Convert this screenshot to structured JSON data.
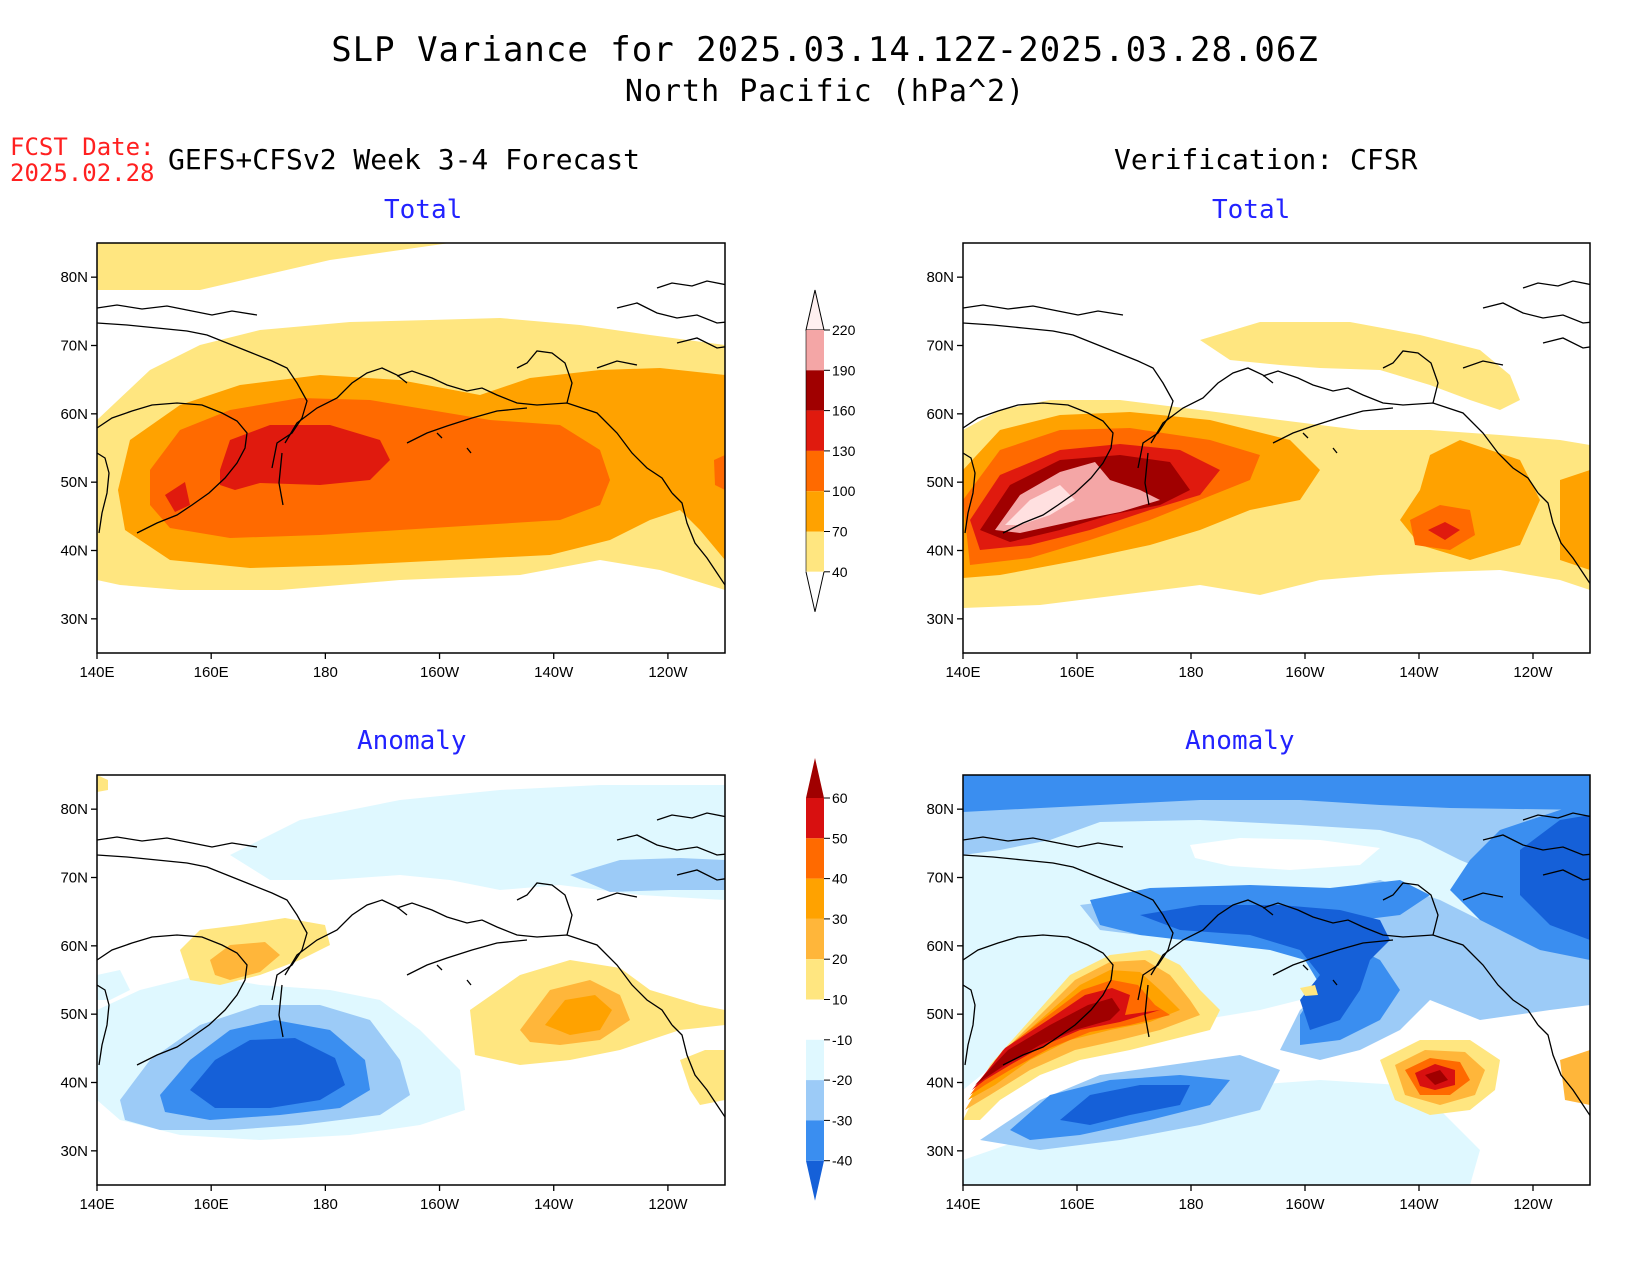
{
  "title": {
    "line1": "SLP Variance for 2025.03.14.12Z-2025.03.28.06Z",
    "line2": "North Pacific (hPa^2)"
  },
  "fcst": {
    "label": "FCST Date:",
    "date": "2025.02.28"
  },
  "left_header": "GEFS+CFSv2 Week 3-4 Forecast",
  "right_header": "Verification: CFSR",
  "panels": {
    "tl": "Total",
    "tr": "Total",
    "bl": "Anomaly",
    "br": "Anomaly"
  },
  "axes": {
    "lat_labels": [
      "80N",
      "70N",
      "60N",
      "50N",
      "40N",
      "30N"
    ],
    "lon_labels": [
      "140E",
      "160E",
      "180",
      "160W",
      "140W",
      "120W"
    ]
  },
  "total_colorbar": {
    "levels": [
      "40",
      "70",
      "100",
      "130",
      "160",
      "190",
      "220"
    ],
    "colors": [
      "#ffe680",
      "#ffa200",
      "#ff6a00",
      "#e01a0e",
      "#a00000",
      "#f4a6a6",
      "#ffe0e0"
    ]
  },
  "anomaly_colorbar": {
    "levels": [
      "-40",
      "-30",
      "-20",
      "-10",
      "10",
      "20",
      "30",
      "40",
      "50",
      "60"
    ],
    "colors": [
      "#1560d8",
      "#3a8ef0",
      "#9ccbf7",
      "#dff8ff",
      "#ffffff",
      "#ffe680",
      "#ffb63a",
      "#ffa200",
      "#ff6a00",
      "#d81010",
      "#a00000"
    ]
  },
  "map_colors": {
    "yellow": "#ffe680",
    "orange": "#ffa200",
    "darkorange": "#ff6a00",
    "red": "#e01a0e",
    "darkred": "#a00000",
    "pink": "#f4a6a6",
    "lightpink": "#ffe0e0",
    "lightorange": "#ffb63a",
    "lightblue": "#dff8ff",
    "skyblue": "#9ccbf7",
    "blue": "#3a8ef0",
    "darkblue": "#1560d8"
  }
}
